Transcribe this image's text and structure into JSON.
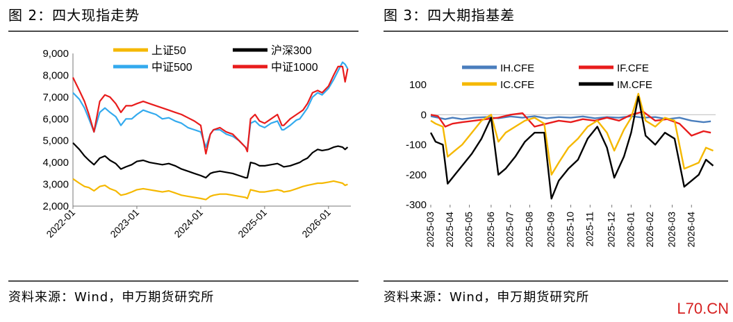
{
  "left": {
    "title": "图 2：四大现指走势",
    "source": "资料来源：Wind，申万期货研究所"
  },
  "right": {
    "title": "图 3：四大期指基差",
    "source": "资料来源：Wind，申万期货研究所"
  },
  "watermark": "L70.CN",
  "chart_data": [
    {
      "type": "line",
      "title": "图 2：四大现指走势",
      "ylim": [
        2000,
        9000
      ],
      "yticks": [
        2000,
        3000,
        4000,
        5000,
        6000,
        7000,
        8000,
        9000
      ],
      "ytick_labels": [
        "2,000",
        "3,000",
        "4,000",
        "5,000",
        "6,000",
        "7,000",
        "8,000",
        "9,000"
      ],
      "xlim": [
        2022.0,
        2026.35
      ],
      "xticks": [
        2022.0,
        2023.0,
        2024.0,
        2025.0,
        2026.0
      ],
      "xtick_labels": [
        "2022-01",
        "2023-01",
        "2024-01",
        "2025-01",
        "2026-01"
      ],
      "legend": [
        "上证50",
        "沪深300",
        "中证500",
        "中证1000"
      ],
      "series": [
        {
          "name": "中证500",
          "color": "#33aaee",
          "x": [
            2022.0,
            2022.1,
            2022.18,
            2022.25,
            2022.33,
            2022.42,
            2022.5,
            2022.58,
            2022.67,
            2022.75,
            2022.83,
            2022.92,
            2023.0,
            2023.1,
            2023.2,
            2023.3,
            2023.4,
            2023.5,
            2023.6,
            2023.7,
            2023.8,
            2023.9,
            2024.0,
            2024.08,
            2024.15,
            2024.2,
            2024.3,
            2024.4,
            2024.5,
            2024.6,
            2024.7,
            2024.73,
            2024.78,
            2024.85,
            2024.92,
            2025.0,
            2025.1,
            2025.2,
            2025.27,
            2025.3,
            2025.4,
            2025.5,
            2025.55,
            2025.6,
            2025.67,
            2025.75,
            2025.83,
            2025.9,
            2026.0,
            2026.08,
            2026.15,
            2026.22,
            2026.26,
            2026.3
          ],
          "y": [
            7200,
            6900,
            6500,
            6000,
            5400,
            6300,
            6500,
            6300,
            6100,
            5700,
            6000,
            6000,
            6200,
            6400,
            6300,
            6200,
            6000,
            6050,
            5900,
            5800,
            5600,
            5500,
            5400,
            4700,
            5300,
            5500,
            5500,
            5300,
            5200,
            5000,
            4700,
            4600,
            5800,
            5900,
            5700,
            5600,
            5800,
            5900,
            5500,
            5500,
            5700,
            5950,
            6000,
            6200,
            6500,
            7000,
            7200,
            7100,
            7400,
            7800,
            8200,
            8600,
            8500,
            8300
          ]
        },
        {
          "name": "中证1000",
          "color": "#e81c1c",
          "x": [
            2022.0,
            2022.1,
            2022.18,
            2022.25,
            2022.33,
            2022.42,
            2022.5,
            2022.58,
            2022.67,
            2022.75,
            2022.83,
            2022.92,
            2023.0,
            2023.1,
            2023.2,
            2023.3,
            2023.4,
            2023.5,
            2023.6,
            2023.7,
            2023.8,
            2023.9,
            2024.0,
            2024.08,
            2024.15,
            2024.2,
            2024.3,
            2024.4,
            2024.5,
            2024.6,
            2024.7,
            2024.73,
            2024.78,
            2024.85,
            2024.92,
            2025.0,
            2025.1,
            2025.2,
            2025.27,
            2025.3,
            2025.4,
            2025.5,
            2025.55,
            2025.6,
            2025.67,
            2025.75,
            2025.83,
            2025.9,
            2026.0,
            2026.08,
            2026.15,
            2026.22,
            2026.26,
            2026.3
          ],
          "y": [
            7900,
            7300,
            6800,
            6200,
            5400,
            6800,
            7100,
            7000,
            6700,
            6300,
            6600,
            6600,
            6700,
            6800,
            6700,
            6600,
            6500,
            6400,
            6300,
            6200,
            6050,
            5900,
            5700,
            4400,
            5300,
            5500,
            5600,
            5400,
            5300,
            5000,
            4700,
            4500,
            6000,
            6200,
            5900,
            5800,
            6000,
            6200,
            5700,
            5700,
            6000,
            6200,
            6300,
            6400,
            6700,
            7200,
            7300,
            7200,
            7500,
            8000,
            8400,
            8400,
            7700,
            8300
          ]
        },
        {
          "name": "沪深300",
          "color": "#000000",
          "x": [
            2022.0,
            2022.1,
            2022.18,
            2022.25,
            2022.33,
            2022.42,
            2022.5,
            2022.58,
            2022.67,
            2022.75,
            2022.83,
            2022.92,
            2023.0,
            2023.1,
            2023.2,
            2023.3,
            2023.4,
            2023.5,
            2023.6,
            2023.7,
            2023.8,
            2023.9,
            2024.0,
            2024.08,
            2024.15,
            2024.2,
            2024.3,
            2024.4,
            2024.5,
            2024.6,
            2024.7,
            2024.73,
            2024.78,
            2024.85,
            2024.92,
            2025.0,
            2025.1,
            2025.2,
            2025.27,
            2025.3,
            2025.4,
            2025.5,
            2025.55,
            2025.6,
            2025.67,
            2025.75,
            2025.83,
            2025.9,
            2026.0,
            2026.08,
            2026.15,
            2026.22,
            2026.26,
            2026.3
          ],
          "y": [
            4900,
            4600,
            4300,
            4100,
            3900,
            4200,
            4300,
            4100,
            3950,
            3700,
            3800,
            3900,
            4050,
            4100,
            4000,
            3950,
            3900,
            3950,
            3850,
            3700,
            3600,
            3500,
            3400,
            3300,
            3500,
            3550,
            3600,
            3550,
            3500,
            3400,
            3300,
            3300,
            4000,
            3950,
            3850,
            3850,
            3900,
            3950,
            3850,
            3800,
            3850,
            3950,
            4000,
            4100,
            4200,
            4450,
            4600,
            4550,
            4600,
            4700,
            4750,
            4700,
            4600,
            4700
          ]
        },
        {
          "name": "上证50",
          "color": "#f5b800",
          "x": [
            2022.0,
            2022.1,
            2022.18,
            2022.25,
            2022.33,
            2022.42,
            2022.5,
            2022.58,
            2022.67,
            2022.75,
            2022.83,
            2022.92,
            2023.0,
            2023.1,
            2023.2,
            2023.3,
            2023.4,
            2023.5,
            2023.6,
            2023.7,
            2023.8,
            2023.9,
            2024.0,
            2024.08,
            2024.15,
            2024.2,
            2024.3,
            2024.4,
            2024.5,
            2024.6,
            2024.7,
            2024.73,
            2024.78,
            2024.85,
            2024.92,
            2025.0,
            2025.1,
            2025.2,
            2025.27,
            2025.3,
            2025.4,
            2025.5,
            2025.55,
            2025.6,
            2025.67,
            2025.75,
            2025.83,
            2025.9,
            2026.0,
            2026.08,
            2026.15,
            2026.22,
            2026.26,
            2026.3
          ],
          "y": [
            3250,
            3050,
            2900,
            2850,
            2700,
            2900,
            2950,
            2800,
            2700,
            2500,
            2550,
            2650,
            2750,
            2800,
            2750,
            2700,
            2650,
            2700,
            2600,
            2500,
            2450,
            2400,
            2350,
            2300,
            2450,
            2500,
            2550,
            2550,
            2500,
            2450,
            2400,
            2350,
            2750,
            2700,
            2650,
            2650,
            2700,
            2750,
            2700,
            2650,
            2700,
            2800,
            2850,
            2900,
            2950,
            3000,
            3050,
            3050,
            3100,
            3150,
            3100,
            3050,
            2950,
            3000
          ]
        }
      ]
    },
    {
      "type": "line",
      "title": "图 3：四大期指基差",
      "ylim": [
        -300,
        100
      ],
      "yticks": [
        -300,
        -200,
        -100,
        0,
        100
      ],
      "ytick_labels": [
        "-300",
        "-200",
        "-100",
        "0",
        "100"
      ],
      "xlim": [
        2025.17,
        2026.35
      ],
      "xticks": [
        2025.17,
        2025.25,
        2025.33,
        2025.42,
        2025.5,
        2025.58,
        2025.67,
        2025.75,
        2025.83,
        2025.92,
        2026.0,
        2026.08,
        2026.17,
        2026.25
      ],
      "xtick_labels": [
        "2025-03",
        "2025-04",
        "2025-05",
        "2025-06",
        "2025-07",
        "2025-08",
        "2025-09",
        "2025-10",
        "2025-11",
        "2025-12",
        "2026-01",
        "2026-02",
        "2026-03",
        "2026-04"
      ],
      "legend": [
        "IH.CFE",
        "IF.CFE",
        "IC.CFE",
        "IM.CFE"
      ],
      "series": [
        {
          "name": "IH.CFE",
          "color": "#4a7ebd",
          "x": [
            2025.17,
            2025.2,
            2025.23,
            2025.26,
            2025.3,
            2025.35,
            2025.4,
            2025.45,
            2025.5,
            2025.55,
            2025.6,
            2025.65,
            2025.7,
            2025.75,
            2025.8,
            2025.85,
            2025.9,
            2025.95,
            2026.0,
            2026.05,
            2026.1,
            2026.15,
            2026.2,
            2026.25,
            2026.3,
            2026.33
          ],
          "y": [
            -5,
            -10,
            -15,
            -10,
            -15,
            -10,
            -8,
            -12,
            -6,
            -10,
            -5,
            -12,
            -8,
            -10,
            -6,
            -12,
            -8,
            -10,
            -5,
            -10,
            -8,
            -15,
            -10,
            -20,
            -25,
            -22
          ]
        },
        {
          "name": "IF.CFE",
          "color": "#e81c1c",
          "x": [
            2025.17,
            2025.2,
            2025.23,
            2025.26,
            2025.3,
            2025.35,
            2025.4,
            2025.45,
            2025.5,
            2025.55,
            2025.6,
            2025.65,
            2025.7,
            2025.75,
            2025.8,
            2025.85,
            2025.9,
            2025.95,
            2026.0,
            2026.05,
            2026.1,
            2026.15,
            2026.2,
            2026.25,
            2026.3,
            2026.33
          ],
          "y": [
            0,
            -5,
            -40,
            -30,
            -25,
            -20,
            -15,
            -10,
            0,
            5,
            -40,
            -30,
            -20,
            -25,
            -15,
            -20,
            -10,
            -20,
            0,
            10,
            -20,
            -15,
            -30,
            -70,
            -55,
            -60
          ]
        },
        {
          "name": "IC.CFE",
          "color": "#f5b800",
          "x": [
            2025.17,
            2025.19,
            2025.22,
            2025.24,
            2025.27,
            2025.3,
            2025.34,
            2025.38,
            2025.42,
            2025.45,
            2025.48,
            2025.52,
            2025.56,
            2025.6,
            2025.64,
            2025.67,
            2025.7,
            2025.74,
            2025.78,
            2025.82,
            2025.86,
            2025.9,
            2025.93,
            2025.97,
            2026.0,
            2026.03,
            2026.06,
            2026.1,
            2026.14,
            2026.18,
            2026.22,
            2026.25,
            2026.28,
            2026.31,
            2026.34
          ],
          "y": [
            -20,
            -30,
            -40,
            -140,
            -120,
            -100,
            -60,
            -20,
            0,
            -90,
            -60,
            -40,
            -20,
            -10,
            -30,
            -200,
            -160,
            -110,
            -80,
            -40,
            -20,
            -60,
            -120,
            -50,
            -10,
            70,
            -20,
            -40,
            -10,
            -20,
            -180,
            -170,
            -160,
            -110,
            -120
          ]
        },
        {
          "name": "IM.CFE",
          "color": "#000000",
          "x": [
            2025.17,
            2025.19,
            2025.22,
            2025.24,
            2025.27,
            2025.3,
            2025.34,
            2025.38,
            2025.42,
            2025.45,
            2025.48,
            2025.52,
            2025.56,
            2025.6,
            2025.64,
            2025.67,
            2025.7,
            2025.74,
            2025.78,
            2025.82,
            2025.86,
            2025.9,
            2025.93,
            2025.97,
            2026.0,
            2026.03,
            2026.06,
            2026.1,
            2026.14,
            2026.18,
            2026.22,
            2026.25,
            2026.28,
            2026.31,
            2026.34
          ],
          "y": [
            -60,
            -90,
            -100,
            -230,
            -200,
            -170,
            -130,
            -80,
            -10,
            -200,
            -180,
            -140,
            -90,
            -60,
            -60,
            -280,
            -220,
            -180,
            -150,
            -80,
            -40,
            -110,
            -210,
            -140,
            -60,
            60,
            -70,
            -100,
            -60,
            -80,
            -240,
            -220,
            -200,
            -150,
            -170
          ]
        }
      ]
    }
  ]
}
